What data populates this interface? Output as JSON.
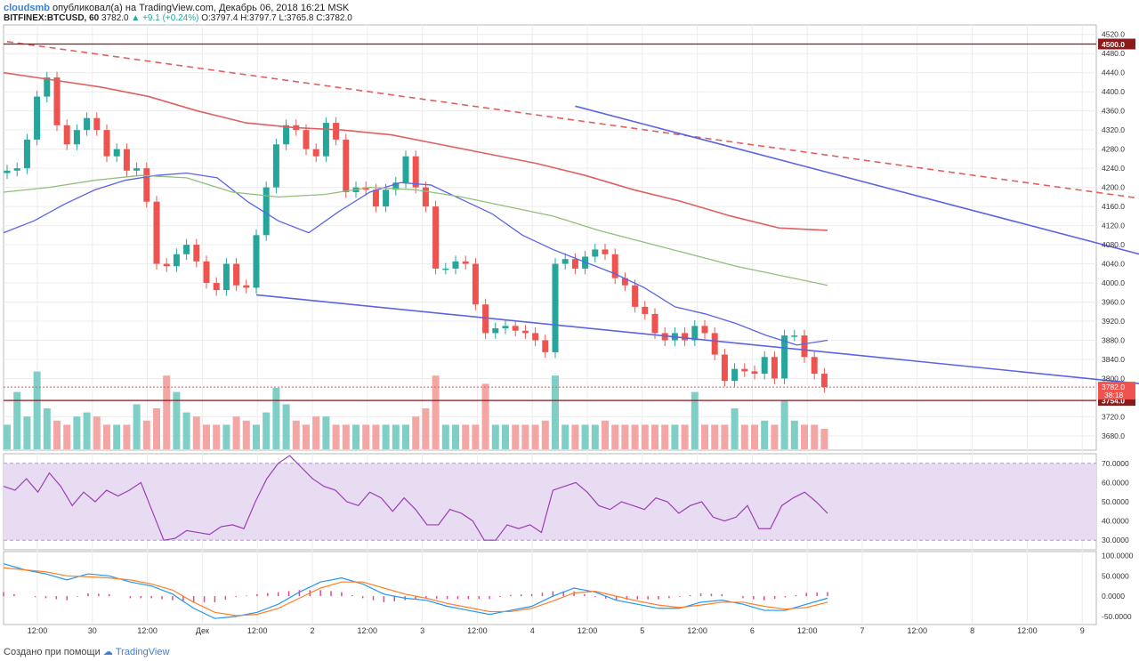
{
  "header": {
    "author": "cloudsmb",
    "published_text": "опубликовал(а) на TradingView.com, Декабрь 06, 2018 16:21 MSK",
    "symbol": "BITFINEX:BTCUSD, 60",
    "last": "3782.0",
    "change": "+9.1 (+0.24%)",
    "ohlc": "O:3797.4 H:3797.7 L:3765.8 C:3782.0"
  },
  "footer": {
    "text": "Создано при помощи",
    "brand": "TradingView",
    "logo_icon": "tradingview-logo-icon"
  },
  "colors": {
    "up": "#26a69a",
    "down": "#ef5350",
    "ma_fast": "#5b63e8",
    "ma_mid": "#8fbf7a",
    "ma_slow": "#e06060",
    "rsi": "#9b3fb5",
    "macd": "#2196f3",
    "signal": "#ff7f27",
    "hist": "#e84393",
    "trendline": "#5b63e8",
    "level": "#8b1a1a"
  },
  "chart_data": [
    {
      "type": "candlestick",
      "y_range": [
        3650,
        4540
      ],
      "y_ticks": [
        "4520.0",
        "4480.0",
        "4440.0",
        "4400.0",
        "4360.0",
        "4320.0",
        "4280.0",
        "4240.0",
        "4200.0",
        "4160.0",
        "4120.0",
        "4080.0",
        "4040.0",
        "4000.0",
        "3960.0",
        "3920.0",
        "3880.0",
        "3840.0",
        "3800.0",
        "3720.0",
        "3680.0"
      ],
      "x_ticks": [
        "12:00",
        "30",
        "12:00",
        "Дек",
        "12:00",
        "2",
        "12:00",
        "3",
        "12:00",
        "4",
        "12:00",
        "5",
        "12:00",
        "6",
        "12:00",
        "7",
        "12:00",
        "8",
        "12:00",
        "9"
      ],
      "close_path": [
        4235,
        4240,
        4300,
        4390,
        4430,
        4330,
        4290,
        4320,
        4345,
        4320,
        4265,
        4280,
        4235,
        4240,
        4170,
        4040,
        4035,
        4060,
        4080,
        4045,
        4000,
        3985,
        4040,
        3995,
        3990,
        4100,
        4200,
        4290,
        4330,
        4320,
        4280,
        4265,
        4335,
        4300,
        4190,
        4200,
        4195,
        4160,
        4195,
        4210,
        4265,
        4200,
        4160,
        4030,
        4030,
        4045,
        4040,
        3955,
        3895,
        3905,
        3910,
        3900,
        3895,
        3880,
        3855,
        4040,
        4050,
        4030,
        4055,
        4070,
        4060,
        4010,
        3995,
        3950,
        3935,
        3895,
        3880,
        3895,
        3880,
        3910,
        3895,
        3850,
        3795,
        3820,
        3815,
        3810,
        3845,
        3800,
        3890,
        3890,
        3845,
        3810,
        3782
      ],
      "levels": [
        {
          "price": 4500,
          "label": "4500.0"
        },
        {
          "price": 3754,
          "label": "3754.0"
        }
      ],
      "last_price": {
        "price": 3782,
        "label": "3782.0",
        "countdown": "38:18"
      },
      "trendlines": [
        {
          "from": [
            0,
            4505
          ],
          "to": [
            175,
            4000
          ],
          "style": "dashed",
          "color": "ma_slow"
        },
        {
          "from": [
            57,
            4370
          ],
          "to": [
            163,
            3790
          ],
          "style": "solid",
          "color": "trendline"
        },
        {
          "from": [
            25,
            3975
          ],
          "to": [
            160,
            3692
          ],
          "style": "solid",
          "color": "trendline"
        }
      ],
      "series": [
        {
          "name": "",
          "role": "ma_fast",
          "values": [
            4105,
            4130,
            4165,
            4195,
            4215,
            4225,
            4230,
            4220,
            4170,
            4130,
            4105,
            4150,
            4190,
            4210,
            4205,
            4175,
            4145,
            4100,
            4070,
            4045,
            4020,
            3990,
            3950,
            3935,
            3915,
            3890,
            3870,
            3880
          ]
        },
        {
          "name": "",
          "role": "ma_mid",
          "values": [
            4190,
            4200,
            4215,
            4225,
            4220,
            4190,
            4180,
            4185,
            4200,
            4195,
            4180,
            4160,
            4140,
            4110,
            4085,
            4060,
            4035,
            4015,
            3995
          ]
        },
        {
          "name": "",
          "role": "ma_slow",
          "values": [
            4440,
            4425,
            4410,
            4390,
            4360,
            4335,
            4325,
            4320,
            4310,
            4290,
            4270,
            4250,
            4225,
            4195,
            4170,
            4140,
            4115,
            4110
          ]
        }
      ],
      "volume": [
        0.3,
        0.7,
        0.4,
        0.95,
        0.5,
        0.35,
        0.3,
        0.4,
        0.45,
        0.4,
        0.3,
        0.3,
        0.3,
        0.55,
        0.35,
        0.5,
        0.9,
        0.7,
        0.45,
        0.4,
        0.3,
        0.3,
        0.3,
        0.4,
        0.35,
        0.3,
        0.45,
        0.75,
        0.55,
        0.35,
        0.3,
        0.4,
        0.4,
        0.3,
        0.3,
        0.3,
        0.3,
        0.3,
        0.3,
        0.3,
        0.3,
        0.4,
        0.5,
        0.9,
        0.3,
        0.3,
        0.3,
        0.3,
        0.8,
        0.3,
        0.3,
        0.3,
        0.3,
        0.3,
        0.35,
        0.9,
        0.3,
        0.3,
        0.3,
        0.3,
        0.35,
        0.3,
        0.3,
        0.3,
        0.3,
        0.3,
        0.3,
        0.3,
        0.3,
        0.7,
        0.3,
        0.3,
        0.3,
        0.5,
        0.3,
        0.3,
        0.35,
        0.3,
        0.6,
        0.35,
        0.3,
        0.3,
        0.25
      ]
    },
    {
      "type": "line",
      "y_range": [
        25,
        75
      ],
      "y_ticks": [
        "70.0000",
        "60.0000",
        "50.0000",
        "40.0000",
        "30.0000"
      ],
      "band": [
        30,
        70
      ],
      "series": [
        {
          "name": "",
          "role": "rsi",
          "values": [
            58,
            56,
            62,
            55,
            65,
            58,
            48,
            55,
            50,
            56,
            53,
            56,
            60,
            45,
            30,
            31,
            35,
            34,
            33,
            37,
            38,
            36,
            50,
            62,
            70,
            74,
            68,
            62,
            58,
            56,
            50,
            48,
            55,
            52,
            45,
            52,
            46,
            38,
            38,
            46,
            44,
            40,
            30,
            30,
            38,
            36,
            38,
            34,
            56,
            58,
            60,
            55,
            48,
            46,
            50,
            48,
            46,
            52,
            50,
            44,
            48,
            50,
            42,
            40,
            42,
            48,
            36,
            36,
            48,
            52,
            55,
            50,
            44
          ]
        }
      ]
    },
    {
      "type": "line",
      "y_range": [
        -70,
        110
      ],
      "y_ticks": [
        "100.0000",
        "50.0000",
        "0.0000",
        "-50.0000"
      ],
      "series": [
        {
          "name": "",
          "role": "macd",
          "values": [
            80,
            65,
            55,
            40,
            55,
            50,
            35,
            25,
            5,
            -30,
            -55,
            -50,
            -40,
            -20,
            10,
            35,
            45,
            30,
            5,
            -5,
            -10,
            -25,
            -35,
            -45,
            -35,
            -25,
            0,
            20,
            10,
            -10,
            -20,
            -30,
            -30,
            -15,
            -10,
            -20,
            -35,
            -35,
            -20,
            -5
          ]
        },
        {
          "name": "",
          "role": "signal",
          "values": [
            70,
            65,
            60,
            50,
            48,
            45,
            40,
            30,
            15,
            -15,
            -40,
            -48,
            -45,
            -30,
            -5,
            20,
            35,
            35,
            20,
            5,
            -5,
            -18,
            -28,
            -38,
            -38,
            -30,
            -12,
            8,
            12,
            0,
            -12,
            -22,
            -28,
            -22,
            -15,
            -15,
            -25,
            -32,
            -28,
            -15
          ]
        },
        {
          "name": "",
          "role": "hist",
          "values": [
            10,
            0,
            -5,
            -10,
            7,
            5,
            -5,
            -5,
            -10,
            -15,
            -15,
            -2,
            5,
            10,
            15,
            15,
            10,
            -5,
            -15,
            -10,
            -5,
            -7,
            -7,
            -7,
            3,
            5,
            12,
            12,
            -2,
            -10,
            -8,
            -8,
            -2,
            7,
            5,
            -5,
            -10,
            -3,
            8,
            10
          ]
        }
      ]
    }
  ]
}
